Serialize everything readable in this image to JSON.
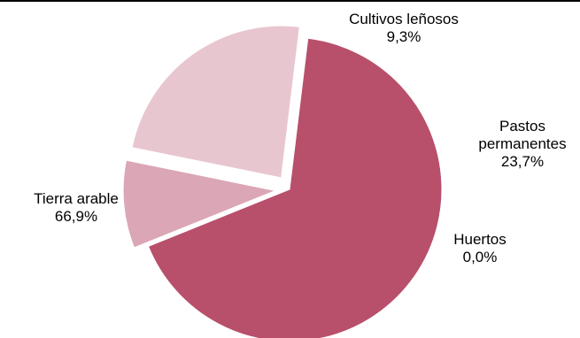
{
  "chart_data": {
    "type": "pie",
    "slices": [
      {
        "label_lines": [
          "Cultivos leñosos"
        ],
        "value_text": "9,3%",
        "value": 9.3,
        "color": "#dba6b5",
        "exploded": true
      },
      {
        "label_lines": [
          "Pastos",
          "permanentes"
        ],
        "value_text": "23,7%",
        "value": 23.7,
        "color": "#e8c6d0",
        "exploded": true
      },
      {
        "label_lines": [
          "Huertos"
        ],
        "value_text": "0,0%",
        "value": 0.0,
        "color": "#b84f6b",
        "exploded": false
      },
      {
        "label_lines": [
          "Tierra arable"
        ],
        "value_text": "66,9%",
        "value": 66.9,
        "color": "#b84f6b",
        "exploded": false
      }
    ],
    "legend": "none",
    "slice_border_color": "#ffffff"
  }
}
